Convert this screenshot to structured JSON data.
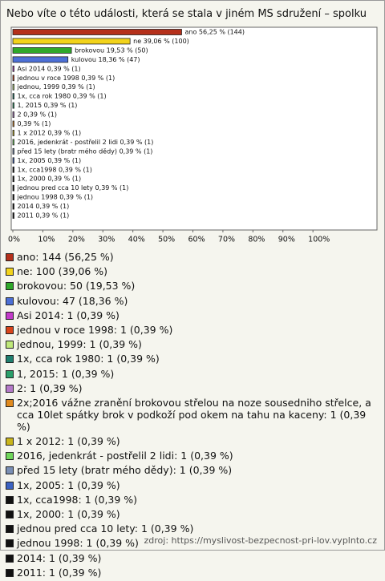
{
  "chart_data": {
    "type": "bar",
    "title": "Nebo víte o této události, která se stala v jiném MS sdružení – spolku",
    "values": [
      56.25,
      39.06,
      19.53,
      18.36,
      0.39,
      0.39,
      0.39,
      0.39,
      0.39,
      0.39,
      0.39,
      0.39,
      0.39,
      0.39,
      0.39,
      0.39,
      0.39,
      0.39,
      0.39,
      0.39,
      0.39
    ],
    "value_labels": [
      "ano 56,25 % (144)",
      "ne 39,06 % (100)",
      "brokovou 19,53 % (50)",
      "kulovou 18,36 % (47)",
      "Asi 2014 0,39 % (1)",
      "jednou v roce 1998 0,39 % (1)",
      "jednou, 1999 0,39 % (1)",
      "1x, cca rok 1980 0,39 % (1)",
      "1, 2015 0,39 % (1)",
      "2 0,39 % (1)",
      "0,39 % (1)",
      "1 x 2012 0,39 % (1)",
      "2016, jedenkrát - postřelil 2 lidi 0,39 % (1)",
      "před 15 lety (bratr mého dědy) 0,39 % (1)",
      "1x, 2005 0,39 % (1)",
      "1x, cca1998 0,39 % (1)",
      "1x, 2000 0,39 % (1)",
      "jednou pred cca 10 lety 0,39 % (1)",
      "jednou 1998 0,39 % (1)",
      "2014 0,39 % (1)",
      "2011 0,39 % (1)"
    ],
    "legend_labels": [
      "ano: 144 (56,25 %)",
      "ne: 100 (39,06 %)",
      "brokovou: 50 (19,53 %)",
      "kulovou: 47 (18,36 %)",
      "Asi 2014: 1 (0,39 %)",
      "jednou v roce 1998: 1 (0,39 %)",
      "jednou, 1999: 1 (0,39 %)",
      "1x, cca rok 1980: 1 (0,39 %)",
      "1, 2015: 1 (0,39 %)",
      "2: 1 (0,39 %)",
      "2x;2016 vážne zranění brokovou střelou na noze sousedniho střelce, a cca 10let spátky brok v podkoží pod okem na tahu na kaceny: 1 (0,39 %)",
      "1 x 2012: 1 (0,39 %)",
      "2016, jedenkrát - postřelil 2 lidi: 1 (0,39 %)",
      "před 15 lety (bratr mého dědy): 1 (0,39 %)",
      "1x, 2005: 1 (0,39 %)",
      "1x, cca1998: 1 (0,39 %)",
      "1x, 2000: 1 (0,39 %)",
      "jednou pred cca 10 lety: 1 (0,39 %)",
      "jednou 1998: 1 (0,39 %)",
      "2014: 1 (0,39 %)",
      "2011: 1 (0,39 %)"
    ],
    "colors": [
      "#b5301b",
      "#f2d31b",
      "#2fa82a",
      "#4c6fd6",
      "#c23bc9",
      "#d9441b",
      "#bfe87a",
      "#1f7f6f",
      "#2a9f6a",
      "#b57ac9",
      "#e08a1e",
      "#c9b51b",
      "#6fd65a",
      "#7a8fb5",
      "#3b62c2",
      "#111111",
      "#111111",
      "#111111",
      "#111111",
      "#111111",
      "#111111"
    ],
    "xlim": [
      0,
      120
    ],
    "xticks": [
      {
        "value": 0,
        "label": "0%"
      },
      {
        "value": 10,
        "label": "10%"
      },
      {
        "value": 20,
        "label": "20%"
      },
      {
        "value": 30,
        "label": "30%"
      },
      {
        "value": 40,
        "label": "40%"
      },
      {
        "value": 50,
        "label": "50%"
      },
      {
        "value": 60,
        "label": "60%"
      },
      {
        "value": 70,
        "label": "70%"
      },
      {
        "value": 80,
        "label": "80%"
      },
      {
        "value": 90,
        "label": "90%"
      },
      {
        "value": 100,
        "label": "100%"
      }
    ],
    "source": "zdroj: https://myslivost-bezpecnost-pri-lov.vyplnto.cz"
  }
}
